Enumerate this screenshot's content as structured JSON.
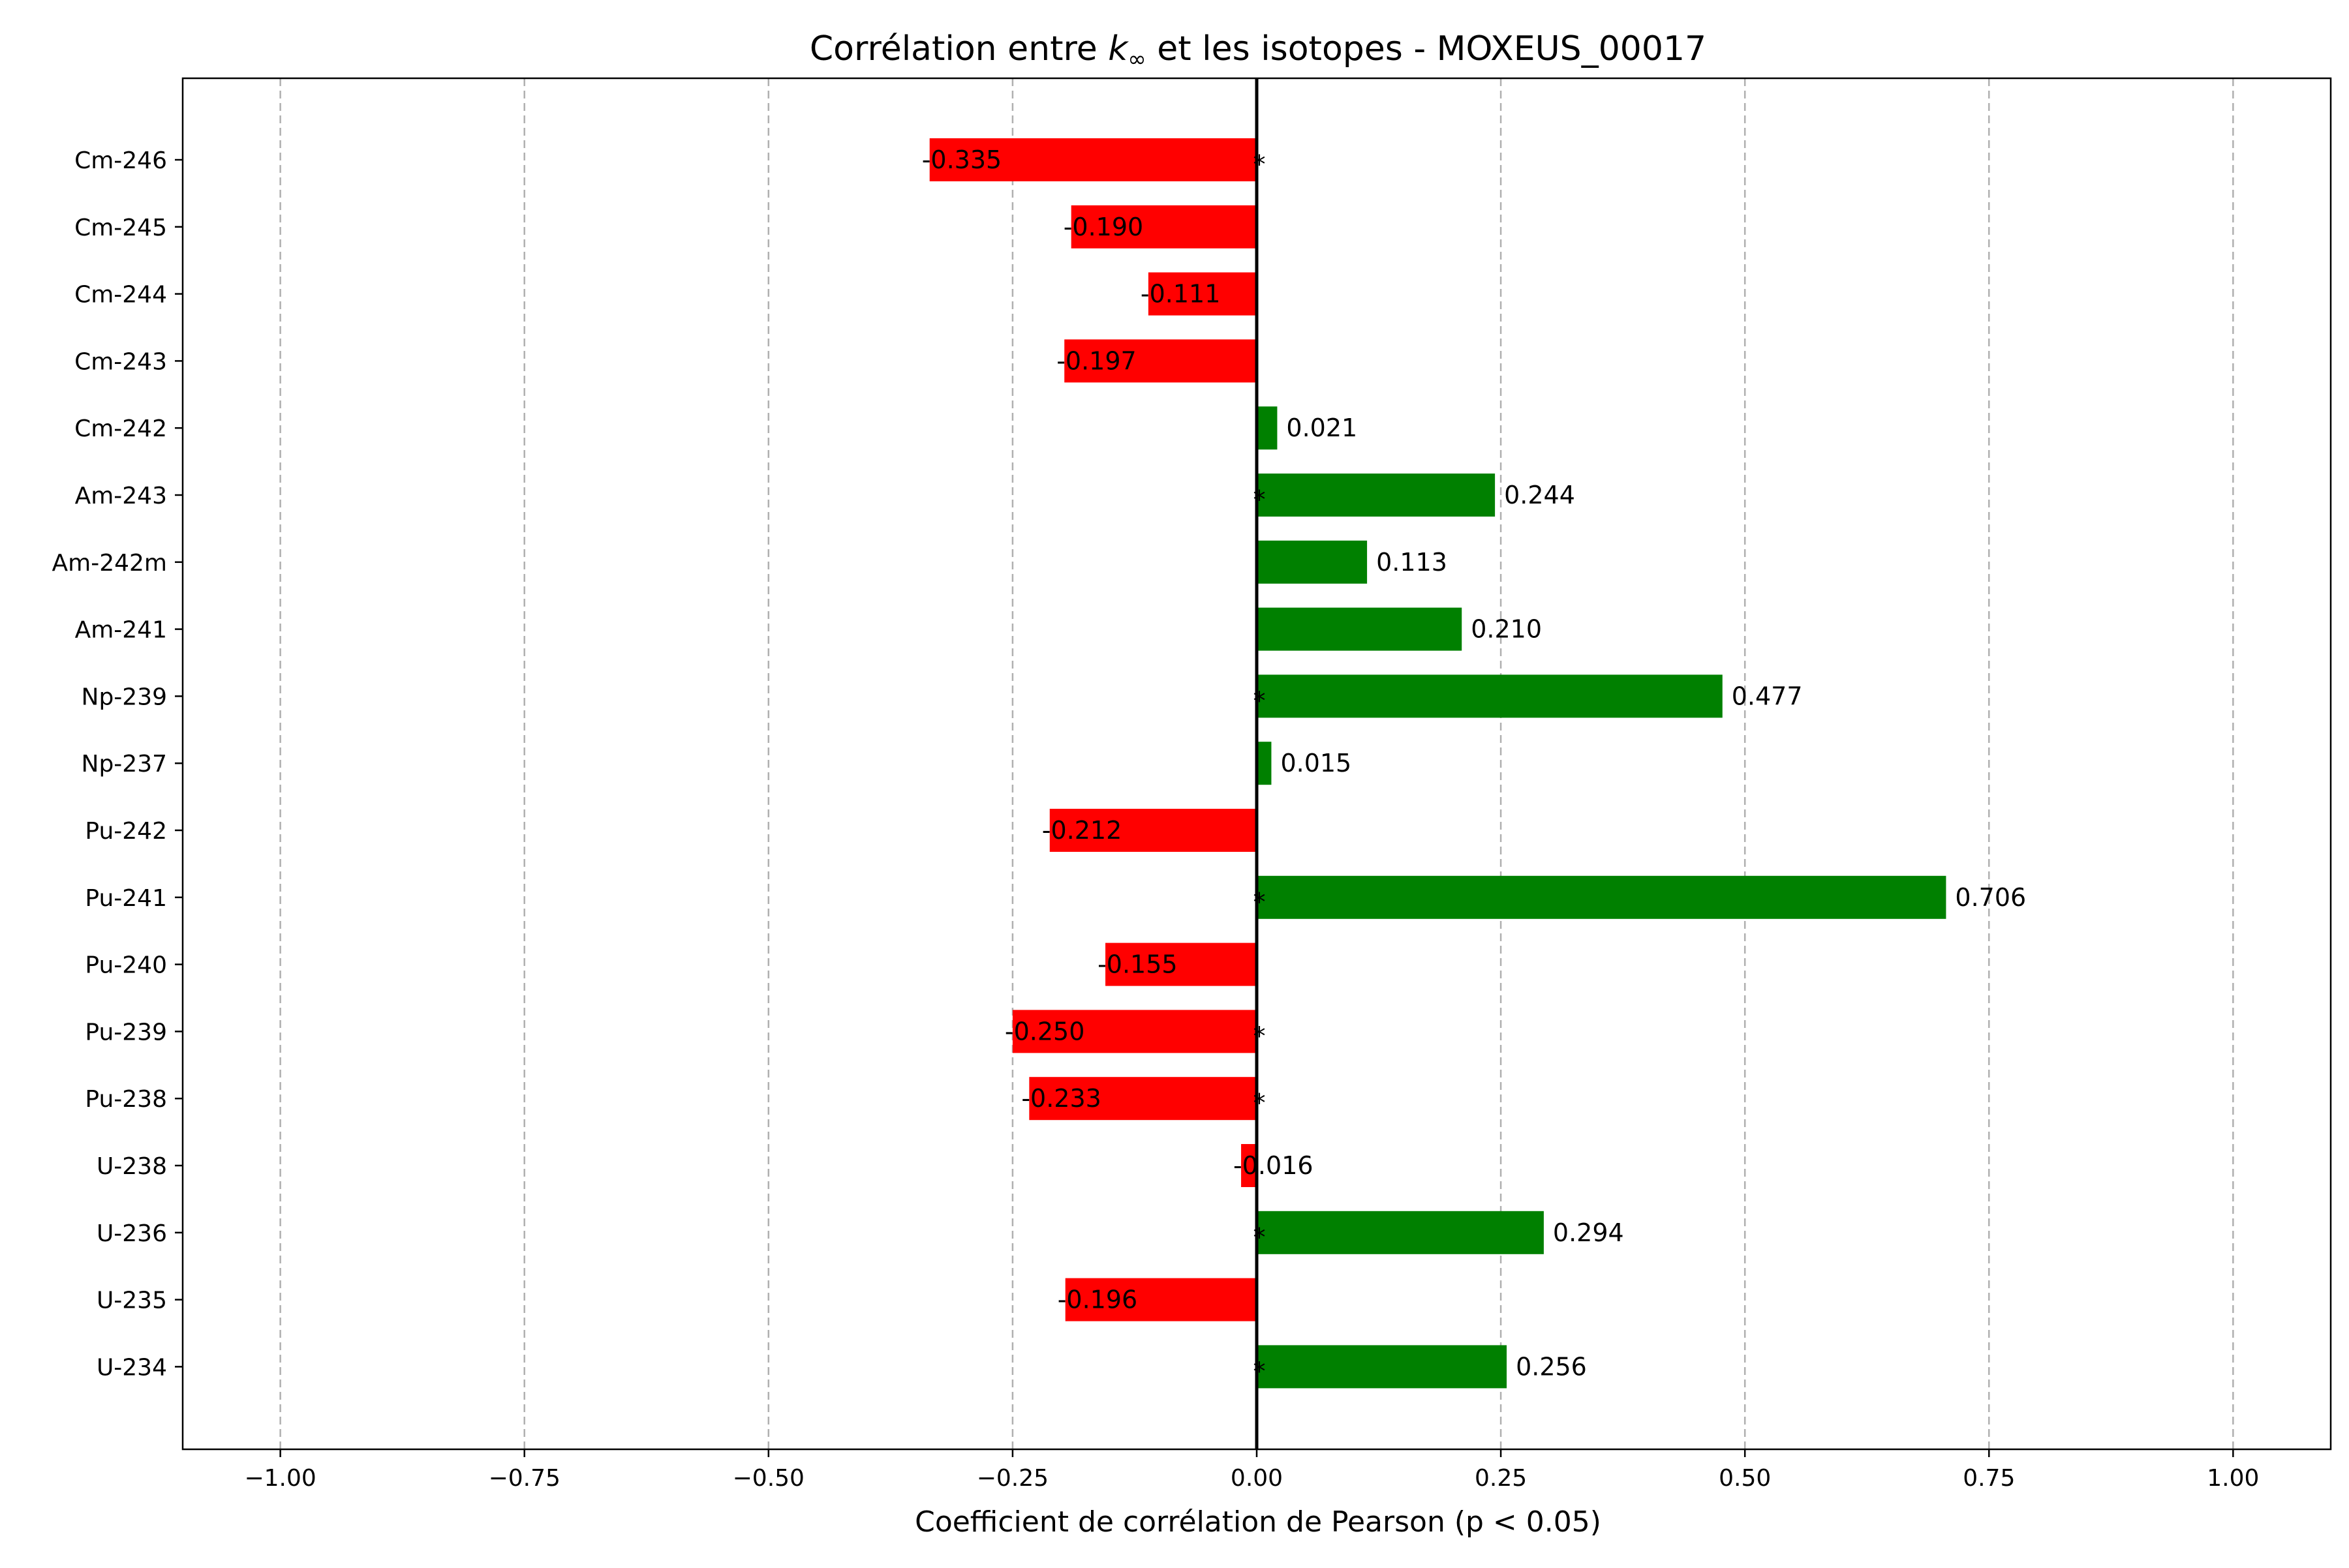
{
  "chart_data": {
    "type": "bar",
    "orientation": "horizontal",
    "title_prefix": "Corrélation entre ",
    "title_symbol": "k",
    "title_subscript": "∞",
    "title_suffix": " et les isotopes - MOXEUS_00017",
    "xlabel": "Coefficient de corrélation de Pearson (p < 0.05)",
    "ylabel": "",
    "xlim": [
      -1.1,
      1.1
    ],
    "xticks": [
      -1.0,
      -0.75,
      -0.5,
      -0.25,
      0.0,
      0.25,
      0.5,
      0.75,
      1.0
    ],
    "xtick_labels": [
      "−1.00",
      "−0.75",
      "−0.50",
      "−0.25",
      "0.00",
      "0.25",
      "0.50",
      "0.75",
      "1.00"
    ],
    "grid": "x-dashed",
    "legend": "none",
    "categories": [
      "U-234",
      "U-235",
      "U-236",
      "U-238",
      "Pu-238",
      "Pu-239",
      "Pu-240",
      "Pu-241",
      "Pu-242",
      "Np-237",
      "Np-239",
      "Am-241",
      "Am-242m",
      "Am-243",
      "Cm-242",
      "Cm-243",
      "Cm-244",
      "Cm-245",
      "Cm-246"
    ],
    "values": [
      0.256,
      -0.196,
      0.294,
      -0.016,
      -0.233,
      -0.25,
      -0.155,
      0.706,
      -0.212,
      0.015,
      0.477,
      0.21,
      0.113,
      0.244,
      0.021,
      -0.197,
      -0.111,
      -0.19,
      -0.335
    ],
    "value_labels": [
      "0.256",
      "-0.196",
      "0.294",
      "-0.016",
      "-0.233",
      "-0.250",
      "-0.155",
      "0.706",
      "-0.212",
      "0.015",
      "0.477",
      "0.210",
      "0.113",
      "0.244",
      "0.021",
      "-0.197",
      "-0.111",
      "-0.190",
      "-0.335"
    ],
    "significance_marker": "*",
    "significant": [
      true,
      false,
      true,
      false,
      true,
      true,
      false,
      true,
      false,
      false,
      true,
      false,
      false,
      true,
      false,
      false,
      false,
      false,
      true
    ],
    "colors": {
      "positive": "#008000",
      "negative": "#ff0000",
      "zero_line": "#000000",
      "grid": "#b0b0b0"
    }
  }
}
